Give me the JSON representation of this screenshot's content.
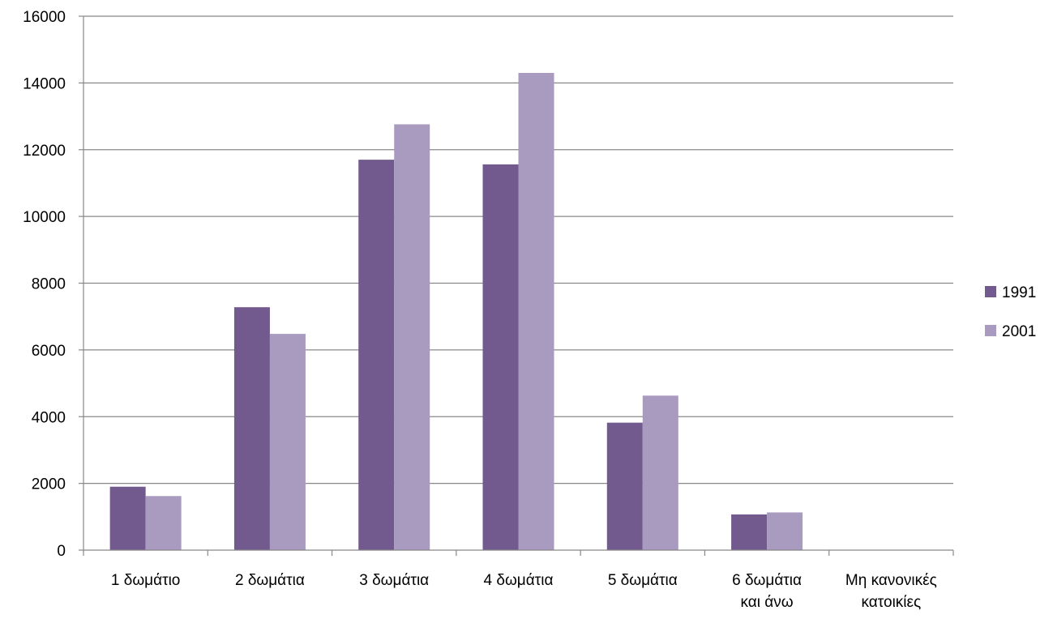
{
  "chart_data": {
    "type": "bar",
    "title": "",
    "xlabel": "",
    "ylabel": "",
    "categories": [
      [
        "1 δωμάτιο"
      ],
      [
        "2 δωμάτια"
      ],
      [
        "3 δωμάτια"
      ],
      [
        "4 δωμάτια"
      ],
      [
        "5 δωμάτια"
      ],
      [
        "6 δωμάτια",
        "και άνω"
      ],
      [
        "Μη κανονικές",
        "κατοικίες"
      ]
    ],
    "series": [
      {
        "name": "1991",
        "color": "#725a8f",
        "values": [
          1900,
          7280,
          11700,
          11560,
          3820,
          1070,
          0
        ]
      },
      {
        "name": "2001",
        "color": "#a99abf",
        "values": [
          1620,
          6480,
          12760,
          14300,
          4630,
          1130,
          0
        ]
      }
    ],
    "ylim": [
      0,
      16000
    ],
    "yticks": [
      "0",
      "2000",
      "4000",
      "6000",
      "8000",
      "10000",
      "12000",
      "14000",
      "16000"
    ],
    "grid": true,
    "legend_position": "right",
    "colors": {
      "gridline": "#888888",
      "axis": "#888888"
    }
  }
}
